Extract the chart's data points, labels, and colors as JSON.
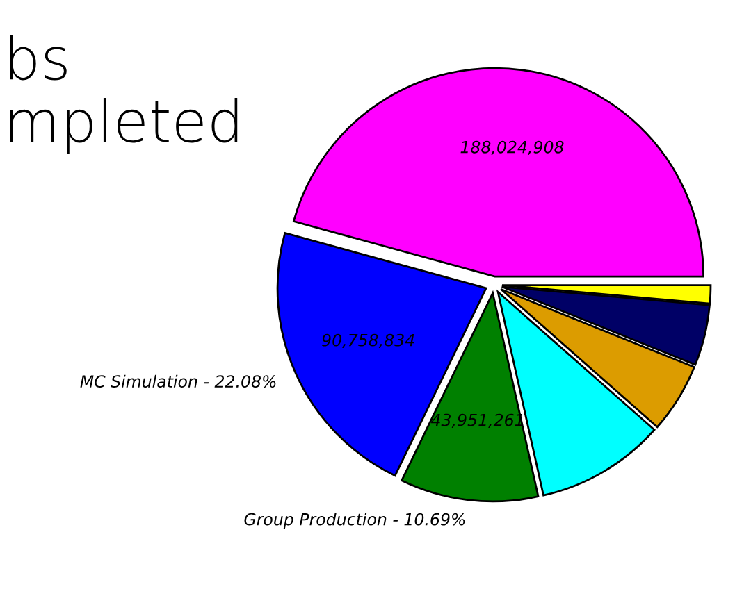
{
  "chart_data": {
    "type": "pie",
    "title": "bs\nmpleted",
    "categories": [
      null,
      "MC Simulation - 22.08%",
      "Group Production - 10.69%",
      null,
      null,
      null,
      null
    ],
    "values": [
      188024908,
      90758834,
      43951261,
      41100000,
      22200000,
      19300000,
      5800000
    ],
    "colors": [
      "#ff00ff",
      "#0000ff",
      "#008000",
      "#00ffff",
      "#dc9c00",
      "#000066",
      "#ffff00"
    ],
    "value_labels": [
      "188,024,908",
      "90,758,834",
      "43,951,261",
      null,
      null,
      null,
      null
    ]
  }
}
